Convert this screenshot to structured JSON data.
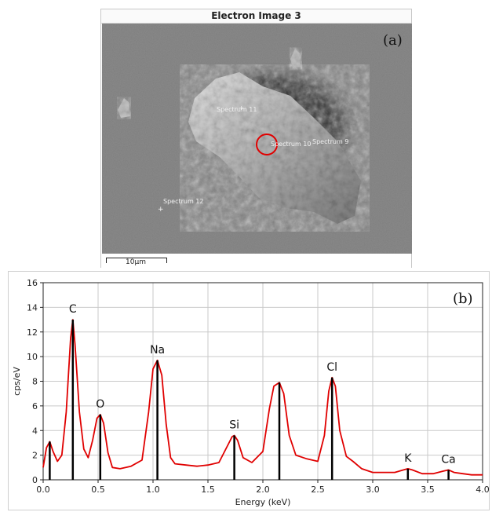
{
  "panel_a": {
    "title": "Electron Image 3",
    "panel_label": "(a)",
    "scale_bar": "10µm",
    "spectrum_markers": [
      {
        "label": "Spectrum 11"
      },
      {
        "label": "Spectrum 10"
      },
      {
        "label": "Spectrum 9"
      },
      {
        "label": "Spectrum 12"
      }
    ]
  },
  "chart_data": {
    "type": "line",
    "panel_label": "(b)",
    "title": "",
    "xlabel": "Energy (keV)",
    "ylabel": "cps/eV",
    "xlim": [
      0.0,
      4.0
    ],
    "ylim": [
      0,
      16
    ],
    "x_ticks": [
      "0.0",
      "0.5",
      "1.0",
      "1.5",
      "2.0",
      "2.5",
      "3.0",
      "3.5",
      "4.0"
    ],
    "y_ticks": [
      "0",
      "2",
      "4",
      "6",
      "8",
      "10",
      "12",
      "14",
      "16"
    ],
    "grid": true,
    "series": [
      {
        "color": "#e00000",
        "x": [
          0.0,
          0.03,
          0.06,
          0.09,
          0.13,
          0.17,
          0.21,
          0.25,
          0.27,
          0.29,
          0.33,
          0.37,
          0.41,
          0.45,
          0.49,
          0.52,
          0.55,
          0.59,
          0.63,
          0.7,
          0.8,
          0.9,
          0.96,
          1.0,
          1.04,
          1.08,
          1.12,
          1.16,
          1.2,
          1.3,
          1.4,
          1.5,
          1.6,
          1.68,
          1.72,
          1.74,
          1.77,
          1.82,
          1.9,
          2.0,
          2.06,
          2.1,
          2.15,
          2.19,
          2.24,
          2.3,
          2.4,
          2.5,
          2.56,
          2.6,
          2.63,
          2.66,
          2.7,
          2.76,
          2.82,
          2.9,
          3.0,
          3.1,
          3.2,
          3.28,
          3.32,
          3.36,
          3.45,
          3.55,
          3.64,
          3.69,
          3.74,
          3.82,
          3.9,
          4.0
        ],
        "y": [
          1.0,
          2.6,
          3.1,
          2.3,
          1.5,
          2.0,
          5.5,
          11.5,
          13.0,
          11.0,
          5.5,
          2.5,
          1.8,
          3.2,
          5.0,
          5.3,
          4.6,
          2.2,
          1.0,
          0.9,
          1.1,
          1.6,
          5.5,
          9.0,
          9.7,
          8.5,
          4.5,
          1.8,
          1.3,
          1.2,
          1.1,
          1.2,
          1.4,
          2.8,
          3.5,
          3.6,
          3.2,
          1.8,
          1.4,
          2.3,
          5.8,
          7.6,
          7.9,
          7.0,
          3.6,
          2.0,
          1.7,
          1.5,
          3.6,
          7.2,
          8.3,
          7.6,
          4.0,
          1.9,
          1.5,
          0.9,
          0.6,
          0.6,
          0.6,
          0.8,
          0.9,
          0.8,
          0.5,
          0.5,
          0.7,
          0.8,
          0.6,
          0.5,
          0.4,
          0.4
        ]
      }
    ],
    "peaks": [
      {
        "element": "C",
        "x": 0.27,
        "y": 13.0
      },
      {
        "element": "O",
        "x": 0.52,
        "y": 5.3
      },
      {
        "element": "Na",
        "x": 1.04,
        "y": 9.7
      },
      {
        "element": "Si",
        "x": 1.74,
        "y": 3.6
      },
      {
        "element": "",
        "x": 2.15,
        "y": 7.9
      },
      {
        "element": "Cl",
        "x": 2.63,
        "y": 8.3
      },
      {
        "element": "K",
        "x": 3.32,
        "y": 0.9
      },
      {
        "element": "Ca",
        "x": 3.69,
        "y": 0.8
      },
      {
        "element": "",
        "x": 0.06,
        "y": 3.1
      }
    ]
  }
}
